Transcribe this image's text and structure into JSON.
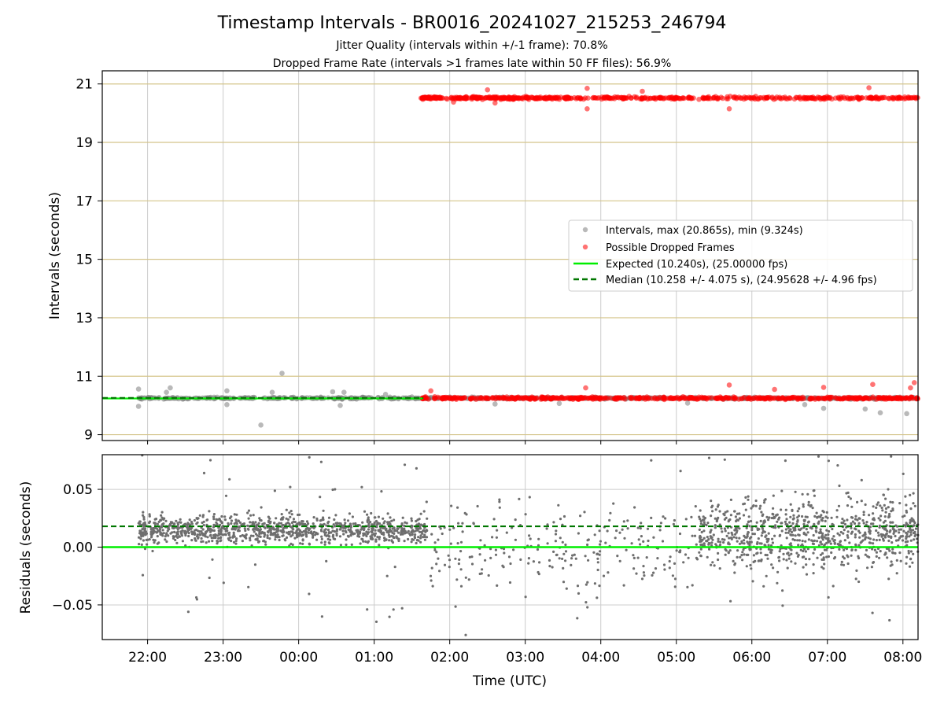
{
  "title": "Timestamp Intervals - BR0016_20241027_215253_246794",
  "subtitle1": "Jitter Quality (intervals within +/-1 frame): 70.8%",
  "subtitle2": "Dropped Frame Rate (intervals >1 frames late within 50 FF files): 56.9%",
  "colors": {
    "intervals": "#808080",
    "dropped": "#ff0000",
    "expected": "#00ee00",
    "median": "#007700",
    "hgrid_top": "#d4c48a",
    "grid": "#cccccc"
  },
  "chart_data": [
    {
      "type": "scatter",
      "ylabel": "Intervals (seconds)",
      "xlim_hours": [
        21.4,
        32.2
      ],
      "ylim": [
        8.8,
        21.45
      ],
      "yticks": [
        9,
        11,
        13,
        15,
        17,
        19,
        21
      ],
      "ytick_labels": [
        "9",
        "11",
        "13",
        "15",
        "17",
        "19",
        "21"
      ],
      "grid": true,
      "legend_position": "center-right",
      "legend": [
        {
          "key": "intervals",
          "label": "Intervals, max (20.865s), min (9.324s)",
          "kind": "marker"
        },
        {
          "key": "dropped",
          "label": "Possible Dropped Frames",
          "kind": "marker"
        },
        {
          "key": "expected",
          "label": "Expected (10.240s), (25.00000 fps)",
          "kind": "line"
        },
        {
          "key": "median",
          "label": "Median (10.258 +/- 4.075 s), (24.95628 +/- 4.96 fps)",
          "kind": "dashed"
        }
      ],
      "expected_value": 10.24,
      "median_value": 10.258,
      "series": [
        {
          "name": "Intervals, max (20.865s), min (9.324s)",
          "x_start": 21.88,
          "x_end": 32.2,
          "center": 10.25,
          "spread": 0.03,
          "outliers": [
            [
              21.88,
              10.56
            ],
            [
              21.88,
              9.97
            ],
            [
              22.3,
              10.6
            ],
            [
              22.25,
              10.45
            ],
            [
              23.05,
              10.5
            ],
            [
              23.05,
              10.03
            ],
            [
              23.5,
              9.33
            ],
            [
              23.78,
              11.1
            ],
            [
              23.65,
              10.45
            ],
            [
              24.45,
              10.47
            ],
            [
              24.55,
              10.0
            ],
            [
              24.6,
              10.45
            ],
            [
              25.15,
              10.38
            ],
            [
              26.6,
              10.05
            ],
            [
              27.45,
              10.07
            ],
            [
              29.15,
              10.08
            ],
            [
              30.7,
              10.03
            ],
            [
              30.95,
              9.9
            ],
            [
              31.5,
              9.88
            ],
            [
              31.7,
              9.75
            ],
            [
              32.05,
              9.72
            ]
          ]
        },
        {
          "name": "Possible Dropped Frames",
          "x_start": 25.62,
          "x_end": 32.2,
          "band_low_center": 10.25,
          "band_high_center": 20.52,
          "spread": 0.04,
          "outliers": [
            [
              25.75,
              10.5
            ],
            [
              26.05,
              20.38
            ],
            [
              26.5,
              20.8
            ],
            [
              26.6,
              20.35
            ],
            [
              27.8,
              10.6
            ],
            [
              27.82,
              20.85
            ],
            [
              27.82,
              20.15
            ],
            [
              28.55,
              20.75
            ],
            [
              29.7,
              20.15
            ],
            [
              29.7,
              10.7
            ],
            [
              30.3,
              10.55
            ],
            [
              30.95,
              10.62
            ],
            [
              31.55,
              20.87
            ],
            [
              31.6,
              10.72
            ],
            [
              32.15,
              10.78
            ],
            [
              32.1,
              10.6
            ]
          ]
        }
      ]
    },
    {
      "type": "scatter",
      "ylabel": "Residuals (seconds)",
      "xlabel": "Time (UTC)",
      "xlim_hours": [
        21.4,
        32.2
      ],
      "ylim": [
        -0.08,
        0.08
      ],
      "yticks": [
        -0.05,
        0.0,
        0.05
      ],
      "ytick_labels": [
        "−0.05",
        "0.00",
        "0.05"
      ],
      "xticks_hours": [
        22,
        23,
        24,
        25,
        26,
        27,
        28,
        29,
        30,
        31,
        32
      ],
      "xtick_labels": [
        "22:00",
        "23:00",
        "00:00",
        "01:00",
        "02:00",
        "03:00",
        "04:00",
        "05:00",
        "06:00",
        "07:00",
        "08:00"
      ],
      "grid": true,
      "expected_residual": 0.0,
      "median_residual": 0.018,
      "series": [
        {
          "name": "",
          "segments": [
            {
              "x_start": 21.88,
              "x_end": 25.7,
              "center": 0.015,
              "spread": 0.012,
              "count": 1100
            },
            {
              "x_start": 25.7,
              "x_end": 29.3,
              "center": 0.0,
              "spread": 0.04,
              "count": 260
            },
            {
              "x_start": 29.3,
              "x_end": 32.2,
              "center": 0.012,
              "spread": 0.03,
              "count": 900
            }
          ]
        }
      ]
    }
  ]
}
